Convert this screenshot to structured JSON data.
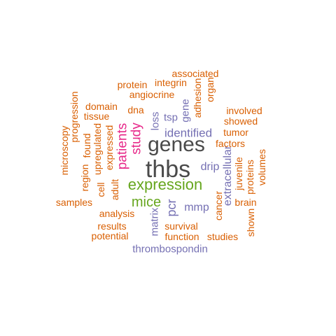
{
  "palette": {
    "orange": "#d95f02",
    "purple": "#7570b3",
    "magenta": "#e7298a",
    "green": "#66a61e",
    "gray": "#666666",
    "darkgray": "#4a4a4a"
  },
  "words": [
    {
      "text": "thbs",
      "color": "darkgray",
      "rotated": false
    },
    {
      "text": "genes",
      "color": "darkgray",
      "rotated": false
    },
    {
      "text": "expression",
      "color": "green",
      "rotated": false
    },
    {
      "text": "mice",
      "color": "green",
      "rotated": false
    },
    {
      "text": "study",
      "color": "magenta",
      "rotated": true
    },
    {
      "text": "patients",
      "color": "magenta",
      "rotated": true
    },
    {
      "text": "identified",
      "color": "purple",
      "rotated": false
    },
    {
      "text": "pcr",
      "color": "purple",
      "rotated": true
    },
    {
      "text": "mmp",
      "color": "purple",
      "rotated": false
    },
    {
      "text": "drip",
      "color": "purple",
      "rotated": false
    },
    {
      "text": "thrombospondin",
      "color": "purple",
      "rotated": false
    },
    {
      "text": "extracellular",
      "color": "purple",
      "rotated": true
    },
    {
      "text": "matrix",
      "color": "purple",
      "rotated": true
    },
    {
      "text": "loss",
      "color": "purple",
      "rotated": true
    },
    {
      "text": "tsp",
      "color": "purple",
      "rotated": false
    },
    {
      "text": "gene",
      "color": "purple",
      "rotated": true
    },
    {
      "text": "associated",
      "color": "orange",
      "rotated": false
    },
    {
      "text": "protein",
      "color": "orange",
      "rotated": false
    },
    {
      "text": "integrin",
      "color": "orange",
      "rotated": false
    },
    {
      "text": "angiocrine",
      "color": "orange",
      "rotated": false
    },
    {
      "text": "adhesion",
      "color": "orange",
      "rotated": true
    },
    {
      "text": "organ",
      "color": "orange",
      "rotated": true
    },
    {
      "text": "domain",
      "color": "orange",
      "rotated": false
    },
    {
      "text": "tissue",
      "color": "orange",
      "rotated": false
    },
    {
      "text": "dna",
      "color": "orange",
      "rotated": false
    },
    {
      "text": "involved",
      "color": "orange",
      "rotated": false
    },
    {
      "text": "showed",
      "color": "orange",
      "rotated": false
    },
    {
      "text": "tumor",
      "color": "orange",
      "rotated": false
    },
    {
      "text": "factors",
      "color": "orange",
      "rotated": false
    },
    {
      "text": "progression",
      "color": "orange",
      "rotated": true
    },
    {
      "text": "microscopy",
      "color": "orange",
      "rotated": true
    },
    {
      "text": "found",
      "color": "orange",
      "rotated": true
    },
    {
      "text": "upregulated",
      "color": "orange",
      "rotated": true
    },
    {
      "text": "expressed",
      "color": "orange",
      "rotated": true
    },
    {
      "text": "region",
      "color": "orange",
      "rotated": true
    },
    {
      "text": "cell",
      "color": "orange",
      "rotated": true
    },
    {
      "text": "adult",
      "color": "orange",
      "rotated": true
    },
    {
      "text": "samples",
      "color": "orange",
      "rotated": false
    },
    {
      "text": "analysis",
      "color": "orange",
      "rotated": false
    },
    {
      "text": "results",
      "color": "orange",
      "rotated": false
    },
    {
      "text": "potential",
      "color": "orange",
      "rotated": false
    },
    {
      "text": "survival",
      "color": "orange",
      "rotated": false
    },
    {
      "text": "function",
      "color": "orange",
      "rotated": false
    },
    {
      "text": "studies",
      "color": "orange",
      "rotated": false
    },
    {
      "text": "cancer",
      "color": "orange",
      "rotated": true
    },
    {
      "text": "juvenile",
      "color": "orange",
      "rotated": true
    },
    {
      "text": "proteins",
      "color": "orange",
      "rotated": true
    },
    {
      "text": "volumes",
      "color": "orange",
      "rotated": true
    },
    {
      "text": "brain",
      "color": "orange",
      "rotated": false
    },
    {
      "text": "shown",
      "color": "orange",
      "rotated": true
    }
  ]
}
